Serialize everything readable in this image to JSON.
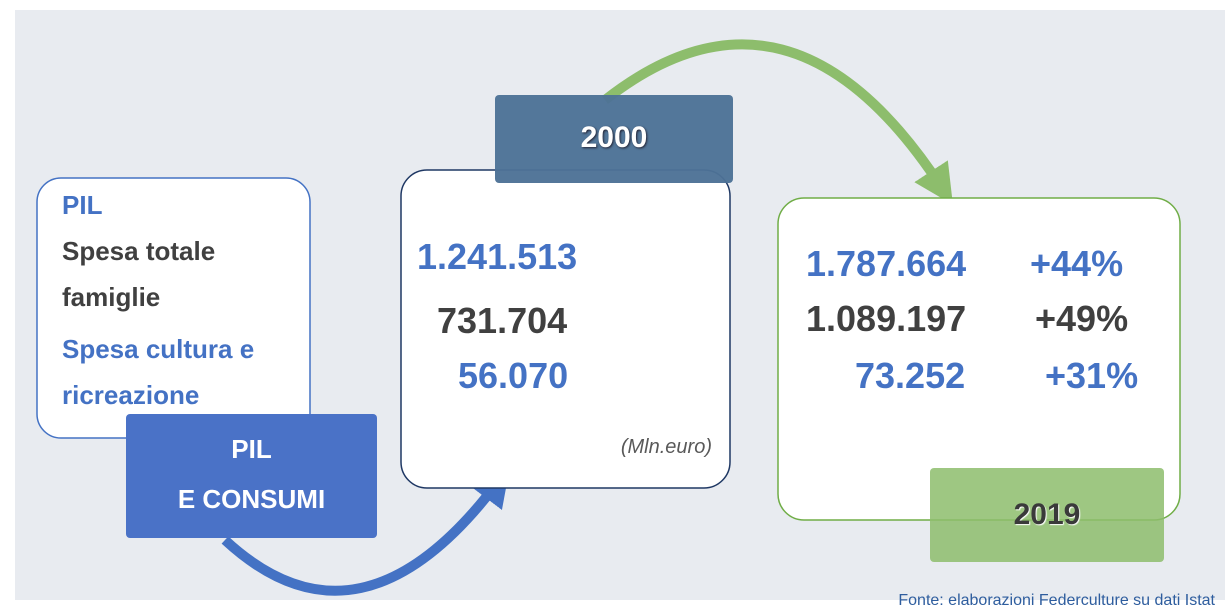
{
  "legend": {
    "items": [
      "PIL",
      "Spesa totale famiglie",
      "Spesa cultura e ricreazione"
    ]
  },
  "badge": {
    "lines": [
      "PIL",
      "E CONSUMI"
    ]
  },
  "year_2000": {
    "year": "2000",
    "values": [
      "1.241.513",
      "731.704",
      "56.070"
    ],
    "unit": "(Mln.euro)"
  },
  "year_2019": {
    "year": "2019",
    "rows": [
      {
        "value": "1.787.664",
        "change": "+44%"
      },
      {
        "value": "1.089.197",
        "change": "+49%"
      },
      {
        "value": "73.252",
        "change": "+31%"
      }
    ]
  },
  "source": "Fonte: elaborazioni Federculture su dati Istat"
}
